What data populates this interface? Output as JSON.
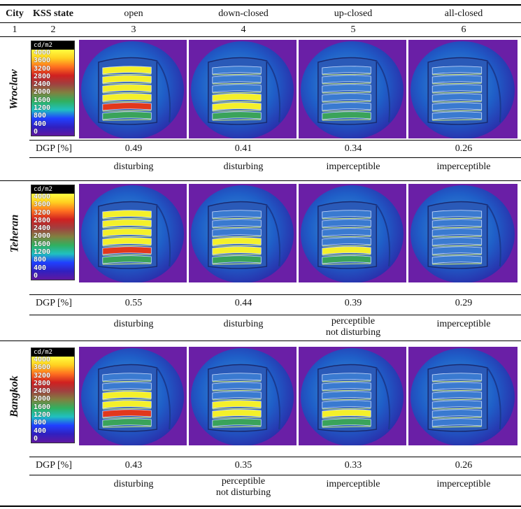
{
  "header": {
    "city": "City",
    "kss_state": "KSS state",
    "states": [
      "open",
      "down-closed",
      "up-closed",
      "all-closed"
    ],
    "numbers": [
      "1",
      "2",
      "3",
      "4",
      "5",
      "6"
    ]
  },
  "legend": {
    "unit": "cd/m2",
    "labels": [
      "4000",
      "3600",
      "3200",
      "2800",
      "2400",
      "2000",
      "1600",
      "1200",
      "800",
      "400",
      "0"
    ]
  },
  "dgp_label": "DGP [%]",
  "cities": [
    {
      "name": "Wroclaw",
      "dgp": [
        "0.49",
        "0.41",
        "0.34",
        "0.26"
      ],
      "glare": [
        [
          "disturbing"
        ],
        [
          "disturbing"
        ],
        [
          "imperceptible"
        ],
        [
          "imperceptible"
        ]
      ],
      "bright_slats": [
        5,
        3,
        1,
        0
      ]
    },
    {
      "name": "Teheran",
      "dgp": [
        "0.55",
        "0.44",
        "0.39",
        "0.29"
      ],
      "glare": [
        [
          "disturbing"
        ],
        [
          "disturbing"
        ],
        [
          "perceptible",
          "not disturbing"
        ],
        [
          "imperceptible"
        ]
      ],
      "bright_slats": [
        5,
        3,
        2,
        0
      ]
    },
    {
      "name": "Bangkok",
      "dgp": [
        "0.43",
        "0.35",
        "0.33",
        "0.26"
      ],
      "glare": [
        [
          "disturbing"
        ],
        [
          "perceptible",
          "not disturbing"
        ],
        [
          "imperceptible"
        ],
        [
          "imperceptible"
        ]
      ],
      "bright_slats": [
        4,
        3,
        2,
        0
      ]
    }
  ],
  "colors": {
    "bg": "#6a1fa6",
    "dome": "#1f5fc8",
    "yellow": "#f4f02a",
    "red": "#e2381c",
    "green": "#3aa35a",
    "cyan": "#7fe6f0"
  }
}
